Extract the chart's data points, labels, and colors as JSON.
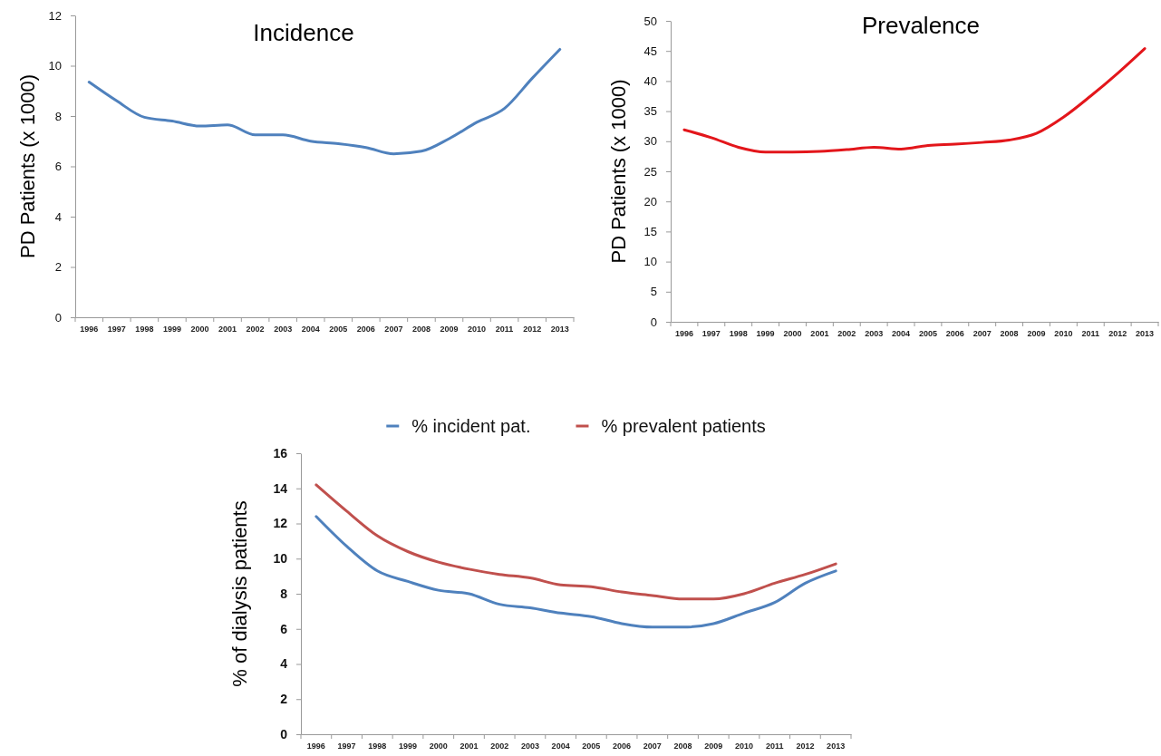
{
  "chart_data": [
    {
      "type": "line",
      "title": "Incidence",
      "ylabel": "PD Patients (x 1000)",
      "categories": [
        "1996",
        "1997",
        "1998",
        "1999",
        "2000",
        "2001",
        "2002",
        "2003",
        "2004",
        "2005",
        "2006",
        "2007",
        "2008",
        "2009",
        "2010",
        "2011",
        "2012",
        "2013"
      ],
      "series": [
        {
          "color": "#4f81bd",
          "values": [
            9.35,
            8.6,
            7.95,
            7.8,
            7.6,
            7.65,
            7.25,
            7.25,
            7.0,
            6.9,
            6.75,
            6.5,
            6.6,
            7.1,
            7.75,
            8.3,
            9.5,
            10.65
          ]
        }
      ],
      "ylim": [
        0,
        12
      ],
      "yticks": [
        0,
        2,
        4,
        6,
        8,
        10,
        12
      ],
      "grid": false,
      "legend": false,
      "marker": "none",
      "line_style": "solid"
    },
    {
      "type": "line",
      "title": "Prevalence",
      "ylabel": "PD Patients (x 1000)",
      "categories": [
        "1996",
        "1997",
        "1998",
        "1999",
        "2000",
        "2001",
        "2002",
        "2003",
        "2004",
        "2005",
        "2006",
        "2007",
        "2008",
        "2009",
        "2010",
        "2011",
        "2012",
        "2013"
      ],
      "series": [
        {
          "color": "#e3161b",
          "values": [
            31.9,
            30.6,
            29.0,
            28.2,
            28.2,
            28.3,
            28.6,
            29.0,
            28.7,
            29.3,
            29.5,
            29.8,
            30.2,
            31.3,
            34.0,
            37.5,
            41.3,
            45.4
          ]
        }
      ],
      "ylim": [
        0,
        50
      ],
      "yticks": [
        0,
        5,
        10,
        15,
        20,
        25,
        30,
        35,
        40,
        45,
        50
      ],
      "grid": false,
      "legend": false,
      "marker": "none",
      "line_style": "solid"
    },
    {
      "type": "line",
      "ylabel": "% of dialysis patients",
      "categories": [
        "1996",
        "1997",
        "1998",
        "1999",
        "2000",
        "2001",
        "2002",
        "2003",
        "2004",
        "2005",
        "2006",
        "2007",
        "2008",
        "2009",
        "2010",
        "2011",
        "2012",
        "2013"
      ],
      "series": [
        {
          "name": "% incident pat.",
          "color": "#4f81bd",
          "values": [
            12.4,
            10.7,
            9.3,
            8.7,
            8.2,
            8.0,
            7.4,
            7.2,
            6.9,
            6.7,
            6.3,
            6.1,
            6.1,
            6.3,
            6.9,
            7.5,
            8.6,
            9.3
          ]
        },
        {
          "name": "% prevalent patients",
          "color": "#c0504d",
          "values": [
            14.2,
            12.7,
            11.3,
            10.4,
            9.8,
            9.4,
            9.1,
            8.9,
            8.5,
            8.4,
            8.1,
            7.9,
            7.7,
            7.7,
            8.0,
            8.6,
            9.1,
            9.7
          ]
        }
      ],
      "ylim": [
        0,
        16
      ],
      "yticks": [
        0,
        2,
        4,
        6,
        8,
        10,
        12,
        14,
        16
      ],
      "grid": false,
      "legend": "top",
      "marker": "none",
      "line_style": "solid"
    }
  ]
}
